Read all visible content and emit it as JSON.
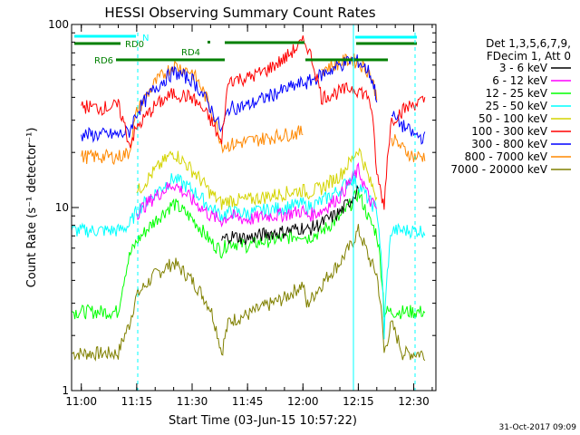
{
  "chart_data": {
    "type": "line",
    "title": "HESSI Observing Summary Count Rates",
    "xlabel": "Start Time (03-Jun-15 10:57:22)",
    "ylabel": "Count Rate (s⁻¹ detector⁻¹)",
    "yscale": "log",
    "ylim": [
      1,
      100
    ],
    "xlim": [
      "10:57:22",
      "12:36:00"
    ],
    "x_ticks": [
      "11:00",
      "11:15",
      "11:30",
      "11:45",
      "12:00",
      "12:15",
      "12:30"
    ],
    "y_ticks": [
      "1",
      "10",
      "100"
    ],
    "legend_header": [
      "Det 1,3,5,6,7,9,",
      "FDecim 1, Att 0"
    ],
    "legend_position": "right",
    "timestamp": "31-Oct-2017 09:09",
    "x": [
      "10:57:22",
      "11:00",
      "11:05",
      "11:10",
      "11:13",
      "11:15",
      "11:20",
      "11:25",
      "11:30",
      "11:35",
      "11:38",
      "11:40",
      "11:45",
      "11:50",
      "11:55",
      "12:00",
      "12:01",
      "12:05",
      "12:10",
      "12:13",
      "12:15",
      "12:18",
      "12:20",
      "12:22",
      "12:24",
      "12:27",
      "12:30",
      "12:33"
    ],
    "series": [
      {
        "name": "3 - 6 keV",
        "color": "#000000",
        "values": [
          null,
          null,
          null,
          null,
          null,
          null,
          null,
          null,
          null,
          null,
          6.6,
          7.0,
          6.8,
          7.2,
          7.4,
          7.8,
          7.5,
          8.2,
          9.4,
          11.0,
          13.0,
          null,
          null,
          null,
          null,
          null,
          null,
          null
        ]
      },
      {
        "name": "6 - 12 keV",
        "color": "#ff00ff",
        "values": [
          null,
          null,
          null,
          null,
          null,
          9.3,
          11.5,
          13.5,
          11.0,
          9.0,
          8.5,
          9.0,
          8.6,
          9.0,
          9.2,
          9.6,
          9.0,
          9.6,
          11.5,
          14.0,
          16.0,
          11.0,
          9.8,
          null,
          null,
          null,
          null,
          null
        ]
      },
      {
        "name": "12 - 25 keV",
        "color": "#00ff00",
        "values": [
          2.7,
          2.7,
          2.7,
          2.7,
          5.4,
          6.5,
          8.5,
          10.5,
          8.7,
          6.5,
          5.8,
          6.5,
          6.2,
          6.6,
          6.8,
          7.2,
          6.8,
          7.4,
          8.8,
          10.5,
          12.0,
          8.5,
          7.2,
          2.7,
          2.7,
          2.7,
          2.7,
          2.7
        ]
      },
      {
        "name": "25 - 50 keV",
        "color": "#00ffff",
        "values": [
          7.5,
          7.5,
          7.5,
          7.5,
          8.0,
          9.6,
          12.0,
          14.5,
          12.5,
          10.0,
          9.0,
          9.5,
          9.3,
          9.7,
          10.0,
          10.5,
          10.0,
          10.8,
          12.5,
          14.5,
          13.5,
          10.8,
          9.8,
          2.0,
          7.5,
          7.5,
          7.5,
          7.5
        ]
      },
      {
        "name": "50 - 100 keV",
        "color": "#d4d400",
        "values": [
          null,
          null,
          null,
          null,
          null,
          12.0,
          16.0,
          20.0,
          16.0,
          12.0,
          10.5,
          11.0,
          11.0,
          11.5,
          12.0,
          12.5,
          12.0,
          12.8,
          15.0,
          18.0,
          21.0,
          14.0,
          11.5,
          null,
          null,
          null,
          null,
          null
        ]
      },
      {
        "name": "100 - 300 keV",
        "color": "#ff0000",
        "values": [
          null,
          36,
          35,
          36,
          22,
          27,
          36,
          42,
          40,
          30,
          22,
          50,
          51,
          56,
          65,
          80,
          78,
          40,
          43,
          45,
          44,
          40,
          15,
          10,
          30,
          34,
          37,
          38
        ]
      },
      {
        "name": "300 - 800 keV",
        "color": "#0000ff",
        "values": [
          null,
          25,
          25,
          25,
          26,
          33,
          45,
          55,
          50,
          35,
          26,
          35,
          36,
          40,
          44,
          48,
          48,
          53,
          60,
          64,
          63,
          55,
          40,
          null,
          32,
          28,
          25,
          24
        ]
      },
      {
        "name": "800 - 7000 keV",
        "color": "#ff8800",
        "values": [
          null,
          19,
          19,
          19,
          20,
          33,
          48,
          60,
          55,
          35,
          22,
          22,
          23,
          24,
          25,
          26,
          null,
          57,
          62,
          65,
          62,
          55,
          40,
          null,
          24,
          21,
          19,
          19
        ]
      },
      {
        "name": "7000 - 20000 keV",
        "color": "#808000",
        "values": [
          1.6,
          1.6,
          1.6,
          1.6,
          2.3,
          3.3,
          4.3,
          5.0,
          4.0,
          2.8,
          1.6,
          2.4,
          2.6,
          2.9,
          3.2,
          3.8,
          2.9,
          3.8,
          5.0,
          6.2,
          7.5,
          5.2,
          4.3,
          1.6,
          2.3,
          1.6,
          1.6,
          1.6
        ]
      }
    ],
    "annotations": [
      "N",
      "RD0",
      "RD4",
      "RD6"
    ],
    "annotation_colors": {
      "N": "#00ffff",
      "RD": "#008000"
    }
  }
}
